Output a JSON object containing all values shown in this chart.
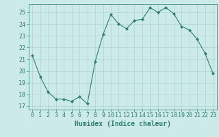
{
  "x": [
    0,
    1,
    2,
    3,
    4,
    5,
    6,
    7,
    8,
    9,
    10,
    11,
    12,
    13,
    14,
    15,
    16,
    17,
    18,
    19,
    20,
    21,
    22,
    23
  ],
  "y": [
    21.3,
    19.5,
    18.2,
    17.6,
    17.6,
    17.4,
    17.8,
    17.2,
    20.8,
    23.1,
    24.8,
    24.0,
    23.6,
    24.3,
    24.4,
    25.4,
    25.0,
    25.4,
    24.9,
    23.8,
    23.5,
    22.7,
    21.5,
    19.8
  ],
  "line_color": "#2e7d6e",
  "marker": "D",
  "marker_size": 2,
  "bg_color": "#cceae7",
  "grid_color": "#aed4d0",
  "tick_color": "#2e7d6e",
  "label_color": "#2e7d6e",
  "xlabel": "Humidex (Indice chaleur)",
  "ylim": [
    16.7,
    25.7
  ],
  "xlim": [
    -0.5,
    23.5
  ],
  "yticks": [
    17,
    18,
    19,
    20,
    21,
    22,
    23,
    24,
    25
  ],
  "xticks": [
    0,
    1,
    2,
    3,
    4,
    5,
    6,
    7,
    8,
    9,
    10,
    11,
    12,
    13,
    14,
    15,
    16,
    17,
    18,
    19,
    20,
    21,
    22,
    23
  ],
  "font_size": 6.0,
  "xlabel_fontsize": 7.0
}
